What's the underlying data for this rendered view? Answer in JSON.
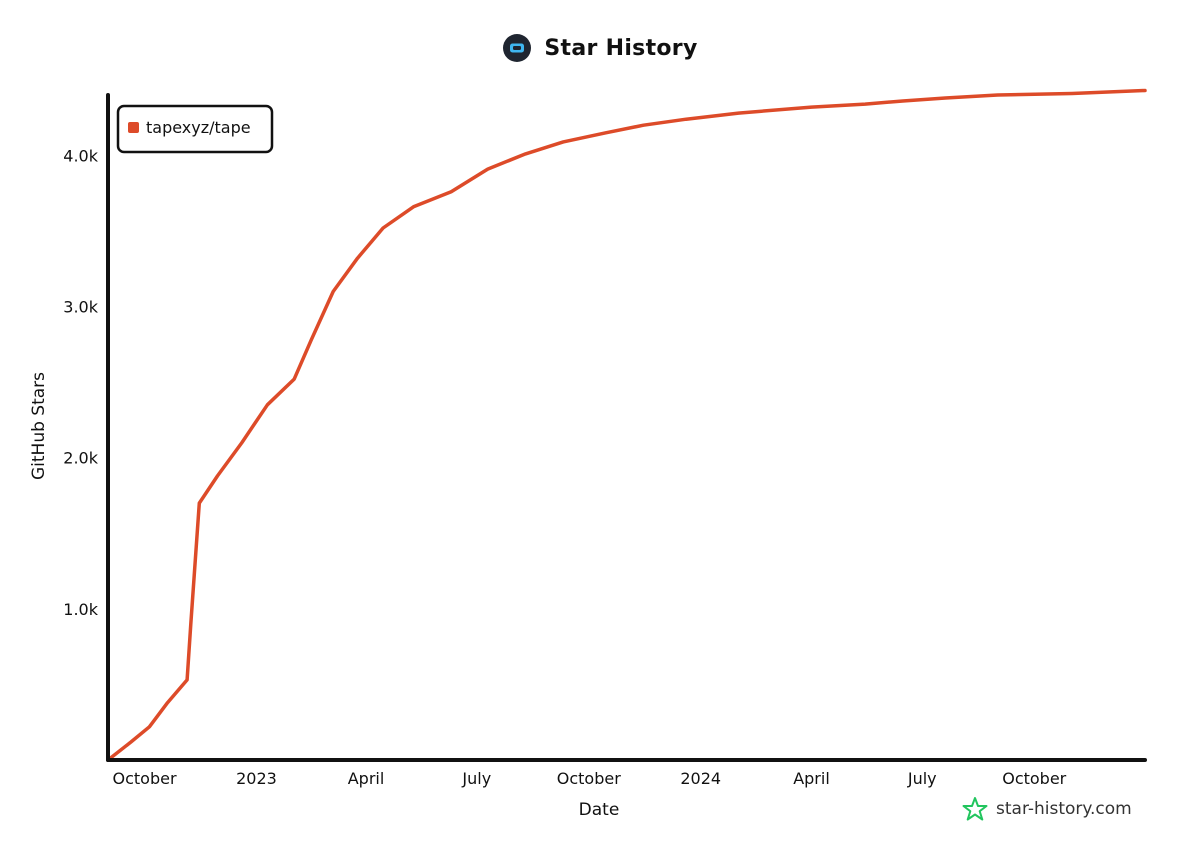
{
  "header": {
    "title": "Star History",
    "logo_icon": "star-history-logo-icon"
  },
  "watermark": {
    "text": "star-history.com",
    "icon": "star-outline-icon",
    "color": "#22c55e"
  },
  "colors": {
    "series": "#dd4b29",
    "axis": "#111111"
  },
  "chart_data": {
    "type": "line",
    "title": "Star History",
    "xlabel": "Date",
    "ylabel": "GitHub Stars",
    "x_axis_type": "date",
    "xlim": [
      "2022-09-01",
      "2024-12-31"
    ],
    "ylim": [
      0,
      4400
    ],
    "x_tick_dates": [
      "2022-10-01",
      "2023-01-01",
      "2023-04-01",
      "2023-07-01",
      "2023-10-01",
      "2024-01-01",
      "2024-04-01",
      "2024-07-01",
      "2024-10-01"
    ],
    "x_tick_labels": [
      "October",
      "2023",
      "April",
      "July",
      "October",
      "2024",
      "April",
      "July",
      "October"
    ],
    "y_ticks": [
      1000,
      2000,
      3000,
      4000
    ],
    "y_tick_labels": [
      "1.0k",
      "2.0k",
      "3.0k",
      "4.0k"
    ],
    "grid": false,
    "legend": {
      "position": "top-left",
      "entries": [
        "tapexyz/tape"
      ]
    },
    "series": [
      {
        "name": "tapexyz/tape",
        "color": "#dd4b29",
        "points": [
          [
            "2022-09-01",
            0
          ],
          [
            "2022-09-20",
            120
          ],
          [
            "2022-10-05",
            220
          ],
          [
            "2022-10-20",
            380
          ],
          [
            "2022-11-05",
            530
          ],
          [
            "2022-11-08",
            900
          ],
          [
            "2022-11-15",
            1700
          ],
          [
            "2022-11-30",
            1880
          ],
          [
            "2022-12-20",
            2100
          ],
          [
            "2023-01-10",
            2350
          ],
          [
            "2023-02-01",
            2520
          ],
          [
            "2023-02-15",
            2780
          ],
          [
            "2023-03-05",
            3100
          ],
          [
            "2023-03-25",
            3320
          ],
          [
            "2023-04-15",
            3520
          ],
          [
            "2023-05-10",
            3660
          ],
          [
            "2023-06-10",
            3760
          ],
          [
            "2023-07-10",
            3910
          ],
          [
            "2023-08-10",
            4010
          ],
          [
            "2023-09-10",
            4090
          ],
          [
            "2023-10-15",
            4150
          ],
          [
            "2023-11-15",
            4200
          ],
          [
            "2023-12-20",
            4240
          ],
          [
            "2024-02-01",
            4280
          ],
          [
            "2024-04-01",
            4320
          ],
          [
            "2024-05-15",
            4340
          ],
          [
            "2024-06-15",
            4360
          ],
          [
            "2024-07-20",
            4380
          ],
          [
            "2024-09-01",
            4400
          ],
          [
            "2024-11-01",
            4410
          ],
          [
            "2024-12-31",
            4430
          ]
        ]
      }
    ]
  }
}
